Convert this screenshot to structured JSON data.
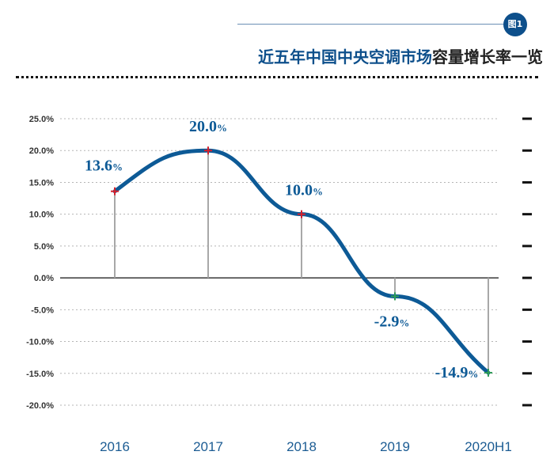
{
  "figure_badge": "图1",
  "title": {
    "part_highlight": "近五年中国中央空调市场",
    "part_rest": "容量增长率一览"
  },
  "chart_data": {
    "type": "line",
    "categories": [
      "2016",
      "2017",
      "2018",
      "2019",
      "2020H1"
    ],
    "values": [
      13.6,
      20.0,
      10.0,
      -2.9,
      -14.9
    ],
    "data_labels": [
      {
        "number": "13.6",
        "unit": "%"
      },
      {
        "number": "20.0",
        "unit": "%"
      },
      {
        "number": "10.0",
        "unit": "%"
      },
      {
        "number": "-2.9",
        "unit": "%"
      },
      {
        "number": "-14.9",
        "unit": "%"
      }
    ],
    "y_ticks": [
      25,
      20,
      15,
      10,
      5,
      0,
      -5,
      -10,
      -15,
      -20
    ],
    "y_tick_labels": [
      "25.0%",
      "20.0%",
      "15.0%",
      "10.0%",
      "5.0%",
      "0.0%",
      "-5.0%",
      "-10.0%",
      "-15.0%",
      "-20.0%"
    ],
    "ylim": [
      -20,
      25
    ],
    "grid": "horizontal dotted",
    "line_color": "#0d5a96",
    "marker_colors": [
      "#d4202c",
      "#d4202c",
      "#d4202c",
      "#2e9b57",
      "#2e9b57"
    ]
  }
}
